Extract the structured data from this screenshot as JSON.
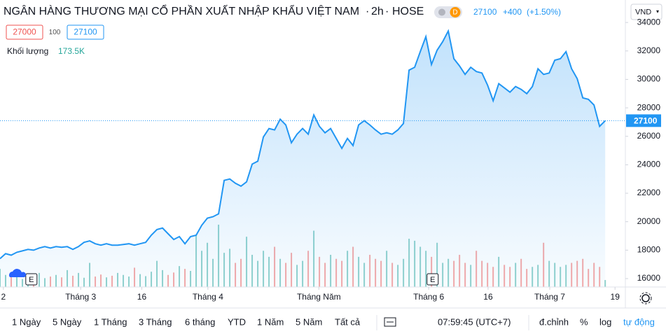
{
  "header": {
    "name": "NGÂN HÀNG THƯƠNG MẠI CỔ PHẦN XUẤT NHẬP KHẨU VIỆT NAM",
    "interval": "2h",
    "exchange": "HOSE",
    "badge": "D",
    "last": 27100,
    "change": "+400",
    "change_pct": "(+1.50%)",
    "currency": "VND"
  },
  "quote": {
    "bid": 27000,
    "spread": 100,
    "ask": 27100,
    "volume_label": "Khối lượng",
    "volume": {
      "value": 173.5,
      "label": "173.5K"
    }
  },
  "chart_data": {
    "type": "area",
    "line_color": "#2196f3",
    "up_color": "#26a69a",
    "down_color": "#ef5350",
    "x": [
      0,
      1,
      2,
      3,
      4,
      5,
      6,
      7,
      8,
      9,
      10,
      11,
      12,
      13,
      14,
      15,
      16,
      17,
      18,
      19,
      20,
      21,
      22,
      23,
      24,
      25,
      26,
      27,
      28,
      29,
      30,
      31,
      32,
      33,
      34,
      35,
      36,
      37,
      38,
      39,
      40,
      41,
      42,
      43,
      44,
      45,
      46,
      47,
      48,
      49,
      50,
      51,
      52,
      53,
      54,
      55,
      56,
      57,
      58,
      59,
      60,
      61,
      62,
      63,
      64,
      65,
      66,
      67,
      68,
      69,
      70,
      71,
      72,
      73,
      74,
      75,
      76,
      77,
      78,
      79,
      80,
      81,
      82,
      83,
      84,
      85,
      86,
      87,
      88,
      89,
      90,
      91,
      92,
      93,
      94,
      95,
      96,
      97,
      98,
      99,
      100,
      101,
      102,
      103,
      104,
      105,
      106,
      107,
      108
    ],
    "series": [
      {
        "name": "Giá",
        "values": [
          17400,
          17750,
          17650,
          17850,
          17950,
          18050,
          18000,
          18150,
          18250,
          18150,
          18250,
          18200,
          18250,
          18050,
          18250,
          18550,
          18650,
          18450,
          18350,
          18450,
          18350,
          18350,
          18400,
          18450,
          18350,
          18450,
          18550,
          19050,
          19450,
          19550,
          19150,
          18750,
          18950,
          18450,
          18950,
          19050,
          19750,
          20250,
          20350,
          20550,
          22900,
          23000,
          22700,
          22500,
          22800,
          24050,
          24250,
          25950,
          26550,
          26450,
          27200,
          26800,
          25550,
          26150,
          26550,
          26150,
          27500,
          26700,
          26250,
          26550,
          25850,
          25150,
          25850,
          25350,
          26800,
          27100,
          26800,
          26450,
          26150,
          26250,
          26150,
          26450,
          26900,
          30650,
          30850,
          31950,
          33000,
          31050,
          32050,
          32650,
          33400,
          31450,
          30950,
          30350,
          30850,
          30550,
          30450,
          29600,
          28500,
          29700,
          29400,
          29100,
          29500,
          29300,
          29000,
          29500,
          30750,
          30350,
          30450,
          31350,
          31450,
          31950,
          30750,
          30050,
          28700,
          28600,
          28200,
          26700,
          27100
        ]
      },
      {
        "name": "Khối lượng",
        "values": [
          450,
          300,
          250,
          380,
          200,
          320,
          280,
          350,
          220,
          260,
          300,
          240,
          420,
          280,
          350,
          230,
          600,
          260,
          310,
          240,
          280,
          350,
          300,
          260,
          480,
          320,
          270,
          380,
          650,
          420,
          300,
          360,
          520,
          450,
          400,
          1300,
          900,
          1100,
          700,
          1550,
          850,
          950,
          600,
          700,
          1250,
          800,
          650,
          900,
          750,
          1000,
          700,
          600,
          850,
          550,
          650,
          900,
          1400,
          750,
          600,
          800,
          700,
          650,
          900,
          1000,
          750,
          600,
          800,
          700,
          650,
          900,
          600,
          550,
          700,
          1200,
          1150,
          1000,
          900,
          750,
          1100,
          600,
          700,
          650,
          800,
          600,
          550,
          900,
          650,
          600,
          500,
          750,
          550,
          500,
          600,
          700,
          450,
          500,
          550,
          1100,
          650,
          600,
          500,
          550,
          600,
          650,
          700,
          450,
          600,
          500,
          173.5
        ]
      }
    ],
    "xlim": [
      0,
      111.6
    ],
    "xticks": [
      {
        "value": 0.6,
        "label": "2"
      },
      {
        "value": 14.4,
        "label": "Tháng 3"
      },
      {
        "value": 25.3,
        "label": "16"
      },
      {
        "value": 37.1,
        "label": "Tháng 4"
      },
      {
        "value": 56.9,
        "label": "Tháng Năm"
      },
      {
        "value": 76.5,
        "label": "Tháng 6"
      },
      {
        "value": 87.1,
        "label": "16"
      },
      {
        "value": 98.1,
        "label": "Tháng 7"
      },
      {
        "value": 109.75,
        "label": "19"
      }
    ],
    "ylim": [
      15410,
      34350
    ],
    "yticks": [
      16000,
      18000,
      20000,
      22000,
      24000,
      26000,
      28000,
      30000,
      32000,
      34000
    ],
    "volume_ylim": [
      0,
      6700
    ],
    "last_price": 27100,
    "events": [
      {
        "x": 5.6,
        "label": "E"
      },
      {
        "x": 77.2,
        "label": "E"
      }
    ]
  },
  "toolbar": {
    "ranges": [
      "1 Ngày",
      "5 Ngày",
      "1 Tháng",
      "3 Tháng",
      "6 tháng",
      "YTD",
      "1 Năm",
      "5 Năm",
      "Tất cả"
    ],
    "time": "07:59:45 (UTC+7)",
    "adjust": "đ.chỉnh",
    "percent": "%",
    "log": "log",
    "auto": "tự động"
  }
}
